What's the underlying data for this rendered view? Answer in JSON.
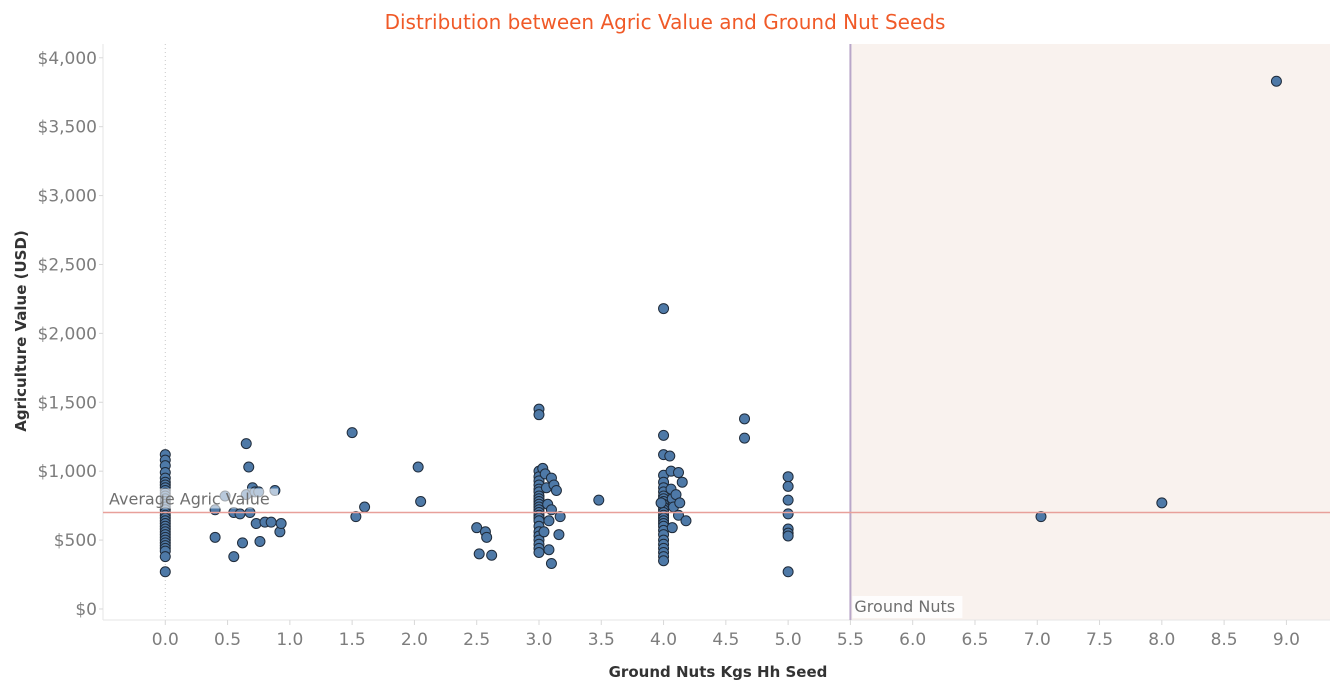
{
  "chart_data": {
    "type": "scatter",
    "title": "Distribution between Agric Value and Ground Nut Seeds",
    "xlabel": "Ground Nuts Kgs Hh Seed",
    "ylabel": "Agriculture Value (USD)",
    "xlim": [
      -0.5,
      9.35
    ],
    "ylim": [
      -80,
      4100
    ],
    "x_ticks": [
      {
        "value": 0.0,
        "label": "0.0"
      },
      {
        "value": 0.5,
        "label": "0.5"
      },
      {
        "value": 1.0,
        "label": "1.0"
      },
      {
        "value": 1.5,
        "label": "1.5"
      },
      {
        "value": 2.0,
        "label": "2.0"
      },
      {
        "value": 2.5,
        "label": "2.5"
      },
      {
        "value": 3.0,
        "label": "3.0"
      },
      {
        "value": 3.5,
        "label": "3.5"
      },
      {
        "value": 4.0,
        "label": "4.0"
      },
      {
        "value": 4.5,
        "label": "4.5"
      },
      {
        "value": 5.0,
        "label": "5.0"
      },
      {
        "value": 5.5,
        "label": "5.5"
      },
      {
        "value": 6.0,
        "label": "6.0"
      },
      {
        "value": 6.5,
        "label": "6.5"
      },
      {
        "value": 7.0,
        "label": "7.0"
      },
      {
        "value": 7.5,
        "label": "7.5"
      },
      {
        "value": 8.0,
        "label": "8.0"
      },
      {
        "value": 8.5,
        "label": "8.5"
      },
      {
        "value": 9.0,
        "label": "9.0"
      }
    ],
    "y_ticks": [
      {
        "value": 0,
        "label": "$0"
      },
      {
        "value": 500,
        "label": "$500"
      },
      {
        "value": 1000,
        "label": "$1,000"
      },
      {
        "value": 1500,
        "label": "$1,500"
      },
      {
        "value": 2000,
        "label": "$2,000"
      },
      {
        "value": 2500,
        "label": "$2,500"
      },
      {
        "value": 3000,
        "label": "$3,000"
      },
      {
        "value": 3500,
        "label": "$3,500"
      },
      {
        "value": 4000,
        "label": "$4,000"
      }
    ],
    "reference_line": {
      "label": "Average Agric Value",
      "value": 700,
      "color": "#e8a09a"
    },
    "reference_band": {
      "label": "Ground Nuts",
      "x_start": 5.5,
      "fill": "#f9f2ee",
      "line_color": "#b9a7c9"
    },
    "marker_color": "#4e79a7",
    "marker_stroke": "#1f2b3a",
    "grid": false,
    "points": [
      [
        0,
        1120
      ],
      [
        0,
        1080
      ],
      [
        0,
        1040
      ],
      [
        0,
        990
      ],
      [
        0,
        950
      ],
      [
        0,
        920
      ],
      [
        0,
        900
      ],
      [
        0,
        880
      ],
      [
        0,
        860
      ],
      [
        0,
        840
      ],
      [
        0,
        820
      ],
      [
        0,
        800
      ],
      [
        0,
        780
      ],
      [
        0,
        760
      ],
      [
        0,
        740
      ],
      [
        0,
        720
      ],
      [
        0,
        700
      ],
      [
        0,
        680
      ],
      [
        0,
        660
      ],
      [
        0,
        640
      ],
      [
        0,
        620
      ],
      [
        0,
        600
      ],
      [
        0,
        580
      ],
      [
        0,
        560
      ],
      [
        0,
        540
      ],
      [
        0,
        520
      ],
      [
        0,
        500
      ],
      [
        0,
        480
      ],
      [
        0,
        460
      ],
      [
        0,
        440
      ],
      [
        0,
        420
      ],
      [
        0,
        380
      ],
      [
        0,
        270
      ],
      [
        0.4,
        720
      ],
      [
        0.4,
        520
      ],
      [
        0.48,
        820
      ],
      [
        0.55,
        700
      ],
      [
        0.55,
        380
      ],
      [
        0.6,
        690
      ],
      [
        0.62,
        480
      ],
      [
        0.65,
        830
      ],
      [
        0.65,
        1200
      ],
      [
        0.67,
        1030
      ],
      [
        0.68,
        700
      ],
      [
        0.7,
        880
      ],
      [
        0.72,
        850
      ],
      [
        0.73,
        620
      ],
      [
        0.75,
        850
      ],
      [
        0.76,
        490
      ],
      [
        0.8,
        630
      ],
      [
        0.85,
        630
      ],
      [
        0.88,
        860
      ],
      [
        0.92,
        560
      ],
      [
        0.93,
        620
      ],
      [
        1.5,
        1280
      ],
      [
        1.53,
        670
      ],
      [
        1.6,
        740
      ],
      [
        2.03,
        1030
      ],
      [
        2.05,
        780
      ],
      [
        2.5,
        590
      ],
      [
        2.52,
        400
      ],
      [
        2.57,
        560
      ],
      [
        2.58,
        520
      ],
      [
        2.62,
        390
      ],
      [
        3.0,
        1450
      ],
      [
        3.0,
        1410
      ],
      [
        3.0,
        1000
      ],
      [
        3.0,
        960
      ],
      [
        3.0,
        930
      ],
      [
        3.0,
        900
      ],
      [
        3.0,
        870
      ],
      [
        3.0,
        850
      ],
      [
        3.0,
        820
      ],
      [
        3.0,
        800
      ],
      [
        3.0,
        780
      ],
      [
        3.0,
        760
      ],
      [
        3.0,
        740
      ],
      [
        3.0,
        720
      ],
      [
        3.0,
        700
      ],
      [
        3.0,
        680
      ],
      [
        3.0,
        660
      ],
      [
        3.0,
        640
      ],
      [
        3.0,
        600
      ],
      [
        3.0,
        560
      ],
      [
        3.0,
        530
      ],
      [
        3.0,
        500
      ],
      [
        3.0,
        470
      ],
      [
        3.0,
        440
      ],
      [
        3.0,
        410
      ],
      [
        3.03,
        1020
      ],
      [
        3.04,
        560
      ],
      [
        3.05,
        980
      ],
      [
        3.06,
        880
      ],
      [
        3.07,
        760
      ],
      [
        3.08,
        640
      ],
      [
        3.08,
        430
      ],
      [
        3.1,
        950
      ],
      [
        3.1,
        720
      ],
      [
        3.1,
        330
      ],
      [
        3.12,
        900
      ],
      [
        3.14,
        860
      ],
      [
        3.16,
        540
      ],
      [
        3.17,
        670
      ],
      [
        3.48,
        790
      ],
      [
        4.0,
        2180
      ],
      [
        4.0,
        1260
      ],
      [
        4.0,
        1120
      ],
      [
        4.0,
        970
      ],
      [
        4.0,
        920
      ],
      [
        4.0,
        880
      ],
      [
        4.0,
        850
      ],
      [
        4.0,
        820
      ],
      [
        4.0,
        800
      ],
      [
        4.0,
        780
      ],
      [
        4.0,
        760
      ],
      [
        4.0,
        740
      ],
      [
        4.0,
        720
      ],
      [
        4.0,
        700
      ],
      [
        4.0,
        680
      ],
      [
        4.0,
        660
      ],
      [
        4.0,
        640
      ],
      [
        4.0,
        620
      ],
      [
        4.0,
        600
      ],
      [
        4.0,
        570
      ],
      [
        4.0,
        540
      ],
      [
        4.0,
        500
      ],
      [
        4.0,
        470
      ],
      [
        4.0,
        440
      ],
      [
        4.0,
        410
      ],
      [
        4.0,
        380
      ],
      [
        4.0,
        350
      ],
      [
        3.98,
        770
      ],
      [
        4.05,
        1110
      ],
      [
        4.06,
        1000
      ],
      [
        4.06,
        870
      ],
      [
        4.07,
        800
      ],
      [
        4.07,
        590
      ],
      [
        4.08,
        740
      ],
      [
        4.1,
        830
      ],
      [
        4.12,
        990
      ],
      [
        4.12,
        680
      ],
      [
        4.13,
        770
      ],
      [
        4.15,
        920
      ],
      [
        4.18,
        640
      ],
      [
        4.65,
        1380
      ],
      [
        4.65,
        1240
      ],
      [
        5.0,
        960
      ],
      [
        5.0,
        890
      ],
      [
        5.0,
        790
      ],
      [
        5.0,
        690
      ],
      [
        5.0,
        580
      ],
      [
        5.0,
        550
      ],
      [
        5.0,
        530
      ],
      [
        5.0,
        270
      ],
      [
        7.03,
        670
      ],
      [
        8.0,
        770
      ],
      [
        8.92,
        3830
      ]
    ]
  }
}
